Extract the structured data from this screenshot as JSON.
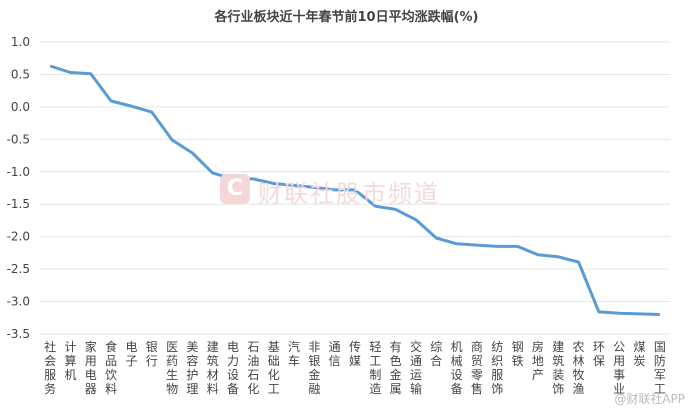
{
  "chart_data": {
    "type": "line",
    "title": "各行业板块近十年春节前10日平均涨跌幅(%)",
    "ylim": [
      -3.5,
      1.0
    ],
    "yticks": [
      "1.0",
      "0.5",
      "0.0",
      "-0.5",
      "-1.0",
      "-1.5",
      "-2.0",
      "-2.5",
      "-3.0",
      "-3.5"
    ],
    "grid": true,
    "color": "#5b9bd5",
    "categories": [
      "社会服务",
      "计算机",
      "家用电器",
      "食品饮料",
      "电子",
      "银行",
      "医药生物",
      "美容护理",
      "建筑材料",
      "电力设备",
      "石油石化",
      "基础化工",
      "汽车",
      "非银金融",
      "通信",
      "传媒",
      "轻工制造",
      "有色金属",
      "交通运输",
      "综合",
      "机械设备",
      "商贸零售",
      "纺织服饰",
      "钢铁",
      "房地产",
      "建筑装饰",
      "农林牧渔",
      "环保",
      "公用事业",
      "煤炭",
      "国防军工"
    ],
    "values": [
      0.63,
      0.53,
      0.51,
      0.09,
      0.01,
      -0.08,
      -0.51,
      -0.71,
      -1.02,
      -1.11,
      -1.11,
      -1.18,
      -1.21,
      -1.24,
      -1.28,
      -1.28,
      -1.53,
      -1.58,
      -1.74,
      -2.02,
      -2.11,
      -2.13,
      -2.15,
      -2.15,
      -2.28,
      -2.31,
      -2.39,
      -3.16,
      -3.18,
      -3.19,
      -3.2
    ]
  },
  "watermark": {
    "logo": "C",
    "text": "财联社股市频道"
  },
  "footer_watermark": "@财联社APP"
}
